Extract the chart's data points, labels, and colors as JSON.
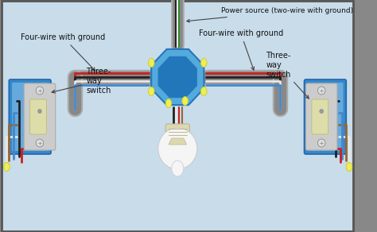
{
  "background_color": "#c8dcea",
  "border_color": "#555555",
  "labels": {
    "power_source": "Power source (two-wire with ground)",
    "four_wire_left": "Four-wire with ground",
    "four_wire_right": "Four-wire with ground",
    "three_way_left": "Three-\nway\nswitch",
    "three_way_right": "Three-\nway\nswitch"
  },
  "colors": {
    "red_wire": "#cc2020",
    "black_wire": "#222222",
    "white_wire": "#e8e8e8",
    "blue_wire": "#4488cc",
    "brown_wire": "#996633",
    "gray_conduit": "#aaaaaa",
    "gray_conduit_dark": "#888888",
    "junction_box_light": "#55aadd",
    "junction_box_dark": "#2277bb",
    "switch_box_blue": "#3388cc",
    "switch_box_dark": "#2266aa",
    "switch_body": "#cccccc",
    "switch_body_dark": "#aaaaaa",
    "switch_toggle": "#ddddaa",
    "wire_cap": "#eeee55",
    "wire_cap_dark": "#cccc22",
    "light_bulb_white": "#f5f5f5",
    "light_socket": "#ddd8b0",
    "light_socket_dark": "#bbb890"
  }
}
